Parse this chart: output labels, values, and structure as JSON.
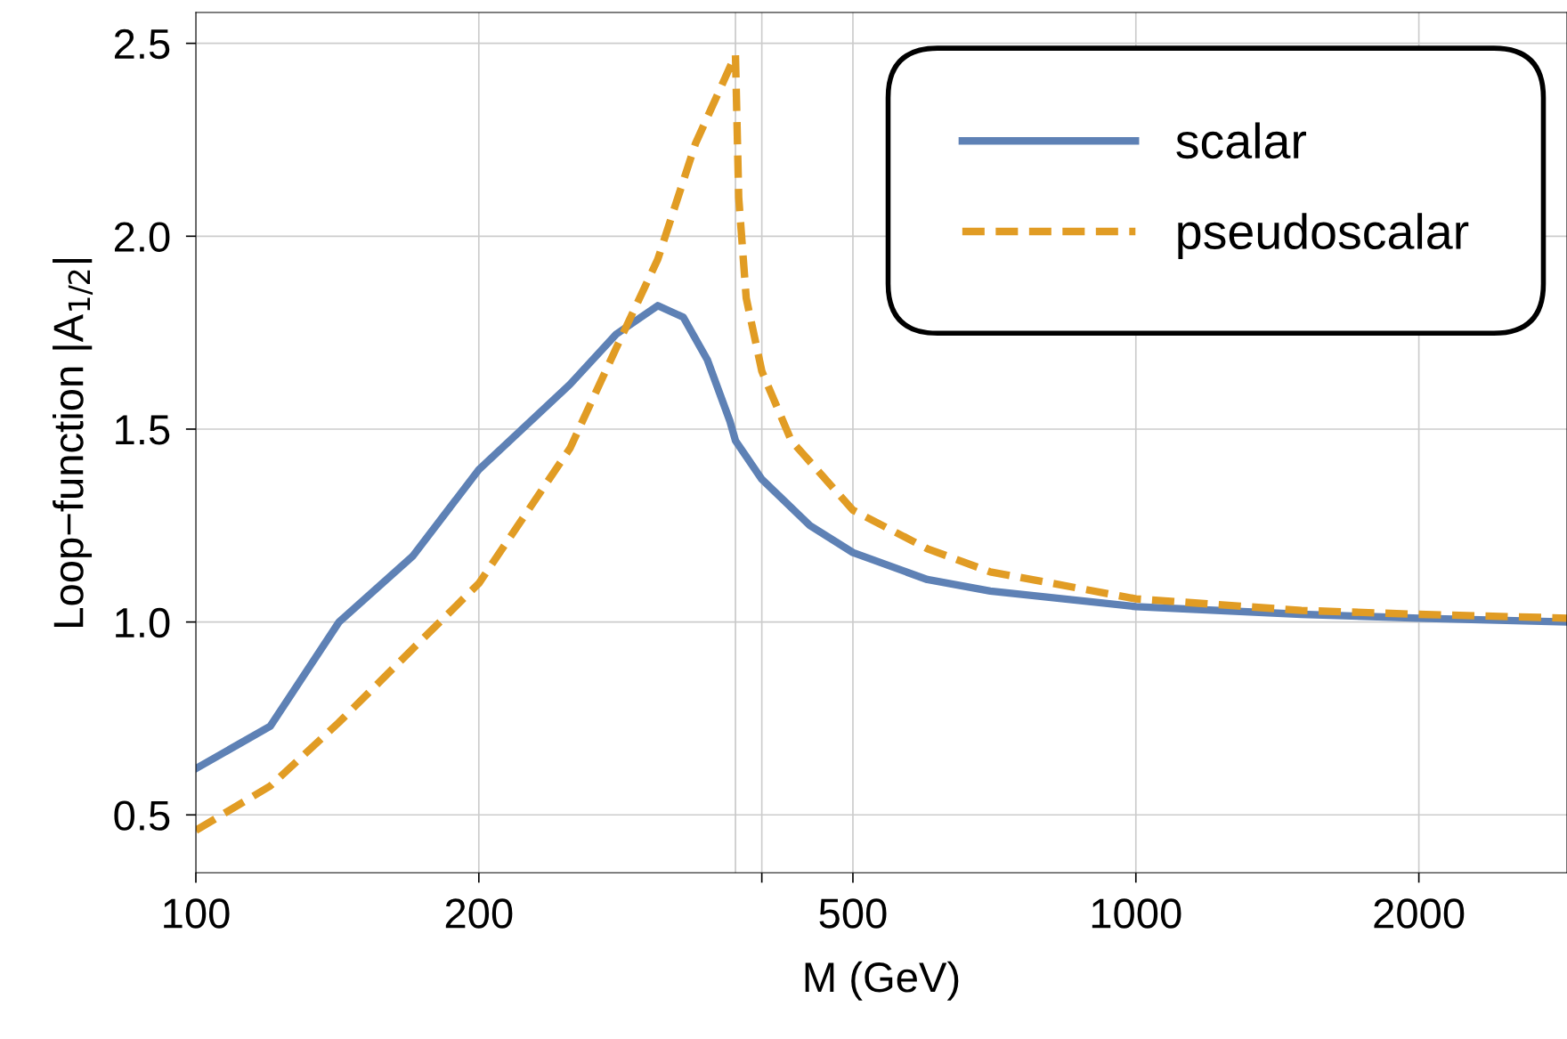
{
  "chart_data": {
    "type": "line",
    "xlabel": "M (GeV)",
    "ylabel": "Loop−function |A$_{1/2}$|",
    "log": "x",
    "xlim": [
      100,
      2875
    ],
    "xticks": [
      100,
      200,
      {
        "value": 400,
        "label": null
      },
      500,
      1000,
      2000
    ],
    "ylim": [
      0.35,
      2.58
    ],
    "yticks": [
      0.5,
      {
        "value": 1,
        "label": "1.0"
      },
      1.5,
      {
        "value": 2,
        "label": "2.0"
      },
      2.5
    ],
    "grid": true,
    "legend": "top right",
    "ref_lines": [
      {
        "axis": "x",
        "value": 375,
        "label": null,
        "color": "#c8c8c8"
      }
    ],
    "series": [
      {
        "name": "scalar",
        "color": "#5e81b5",
        "line_style": "solid",
        "x": [
          100,
          120,
          142,
          170,
          200,
          250,
          280,
          310,
          330,
          350,
          370,
          375,
          400,
          450,
          500,
          600,
          700,
          1000,
          1500,
          2000,
          2875
        ],
        "values": [
          0.62,
          0.73,
          1.0,
          1.17,
          1.395,
          1.616,
          1.746,
          1.82,
          1.79,
          1.68,
          1.52,
          1.47,
          1.37,
          1.25,
          1.18,
          1.11,
          1.08,
          1.04,
          1.02,
          1.01,
          1.0
        ]
      },
      {
        "name": "pseudoscalar",
        "color": "#e19c24",
        "line_style": "dashed",
        "x": [
          100,
          120,
          142,
          170,
          200,
          250,
          280,
          310,
          340,
          375,
          378,
          385,
          400,
          430,
          500,
          600,
          700,
          1000,
          1500,
          2000,
          2875
        ],
        "values": [
          0.46,
          0.575,
          0.74,
          0.93,
          1.1,
          1.45,
          1.71,
          1.94,
          2.24,
          2.47,
          2.1,
          1.84,
          1.65,
          1.47,
          1.29,
          1.19,
          1.13,
          1.06,
          1.03,
          1.02,
          1.01
        ]
      }
    ]
  }
}
